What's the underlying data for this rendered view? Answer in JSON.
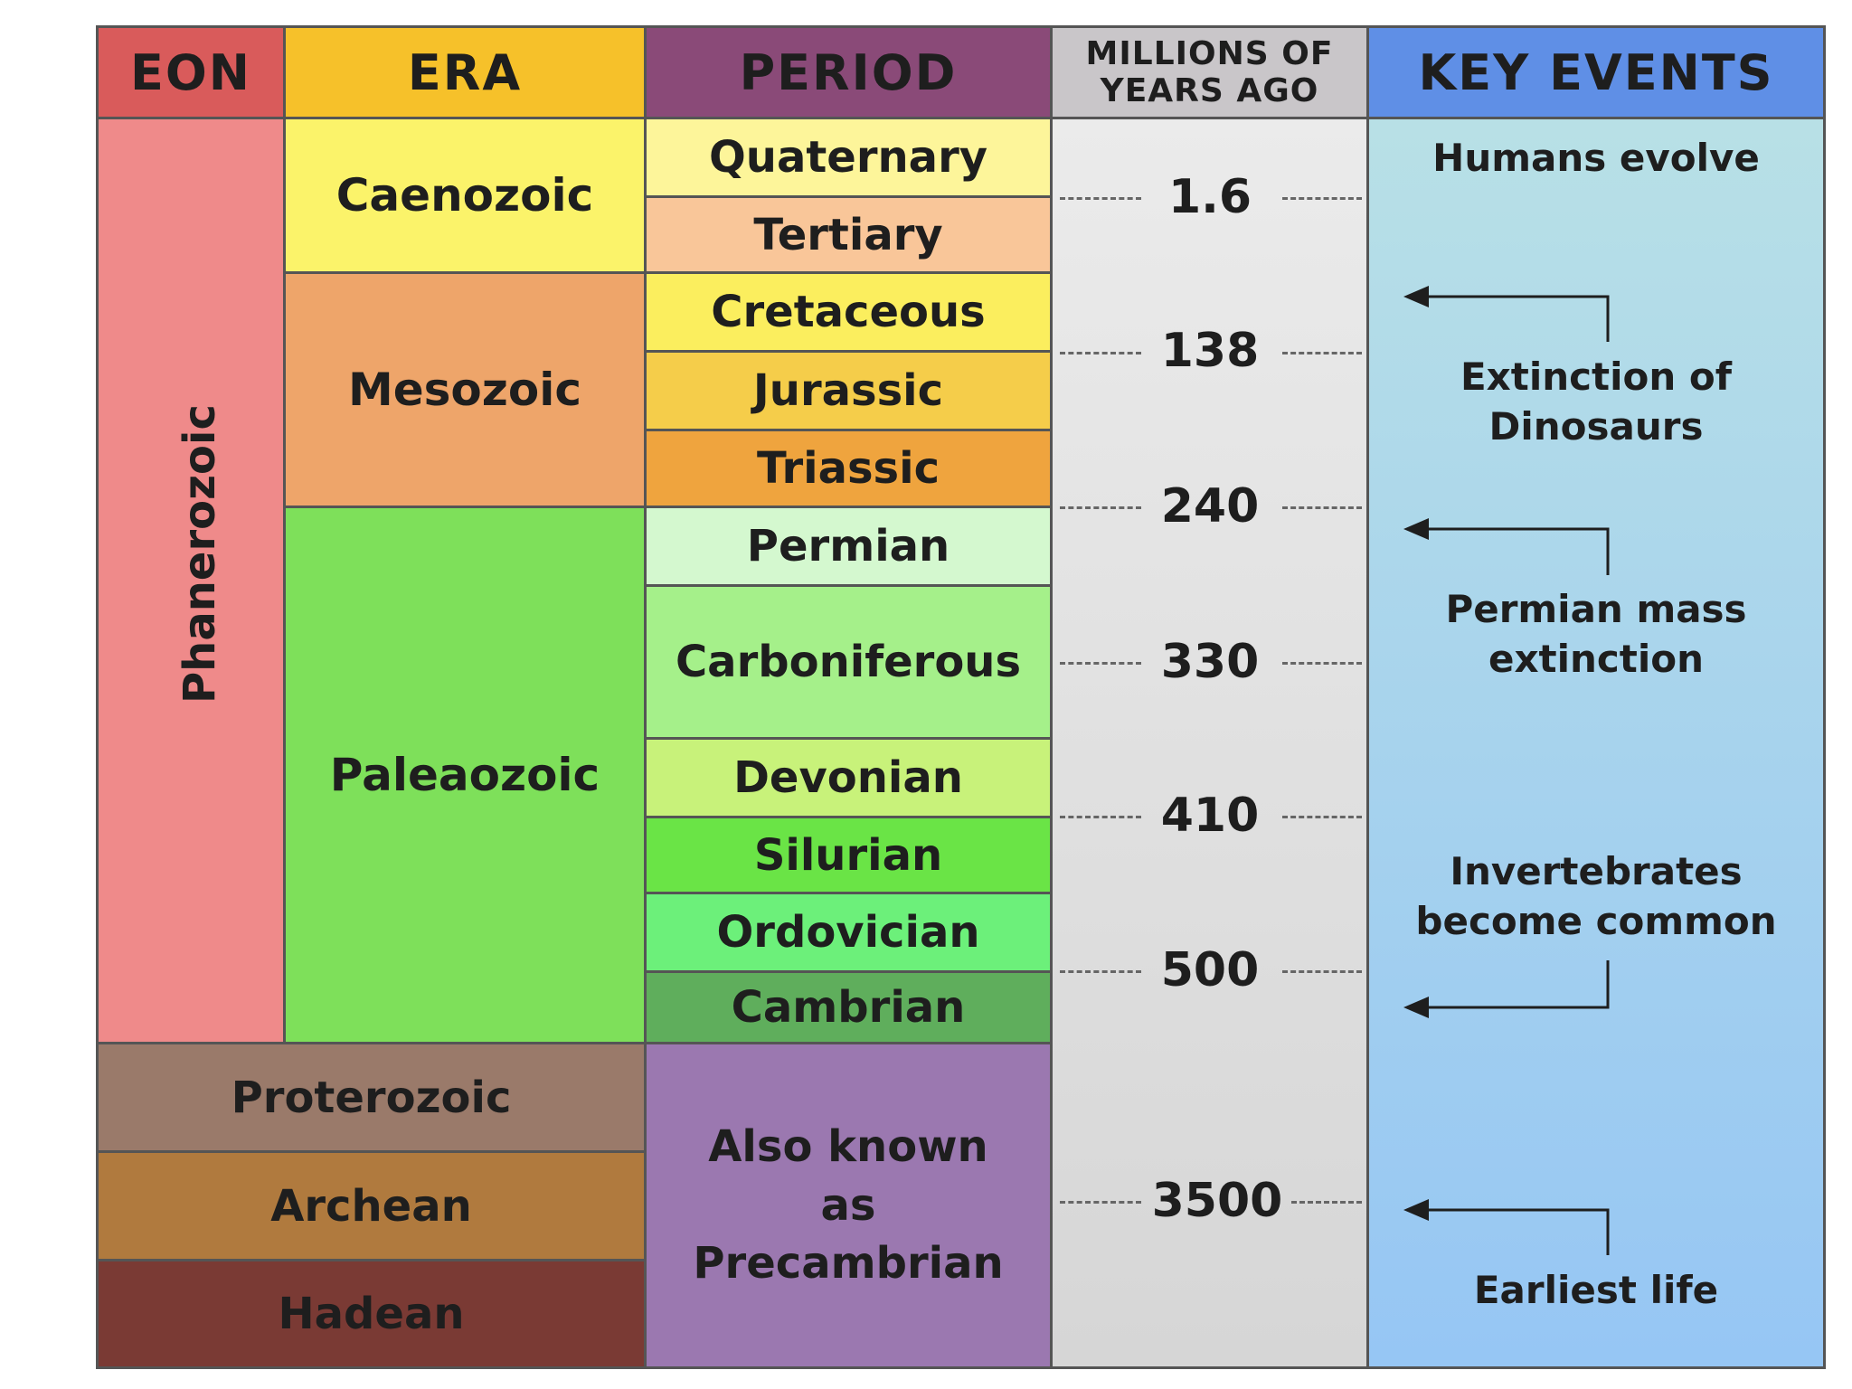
{
  "headers": {
    "eon": "EON",
    "era": "ERA",
    "period": "PERIOD",
    "myr_line1": "MILLIONS OF",
    "myr_line2": "YEARS AGO",
    "events": "KEY EVENTS"
  },
  "eons": {
    "phanerozoic": "Phanerozoic",
    "proterozoic": "Proterozoic",
    "archean": "Archean",
    "hadean": "Hadean"
  },
  "eras": {
    "caenozoic": "Caenozoic",
    "mesozoic": "Mesozoic",
    "paleaozoic": "Paleaozoic"
  },
  "periods": {
    "quaternary": "Quaternary",
    "tertiary": "Tertiary",
    "cretaceous": "Cretaceous",
    "jurassic": "Jurassic",
    "triassic": "Triassic",
    "permian": "Permian",
    "carboniferous": "Carboniferous",
    "devonian": "Devonian",
    "silurian": "Silurian",
    "ordovician": "Ordovician",
    "cambrian": "Cambrian"
  },
  "precambrian": {
    "line1": "Also known",
    "line2": "as",
    "line3": "Precambrian"
  },
  "millions_of_years": [
    "1.6",
    "138",
    "240",
    "330",
    "410",
    "500",
    "3500"
  ],
  "events": {
    "humans": "Humans evolve",
    "dino_line1": "Extinction of",
    "dino_line2": "Dinosaurs",
    "permian_line1": "Permian mass",
    "permian_line2": "extinction",
    "invert_line1": "Invertebrates",
    "invert_line2": "become common",
    "earliest": "Earliest life"
  },
  "colors": {
    "eon_header": "#d95b5b",
    "era_header": "#f6c12a",
    "period_header": "#8a4a78",
    "myr_header": "#c9c6c9",
    "events_header": "#5f8fe6",
    "phanerozoic": "#ef8a8a",
    "caenozoic": "#fbf36a",
    "mesozoic": "#eea56a",
    "paleaozoic": "#7ee05a",
    "proterozoic": "#9a7a6a",
    "archean": "#b07a3e",
    "hadean": "#7a3a34",
    "precambrian": "#9b78b0"
  }
}
